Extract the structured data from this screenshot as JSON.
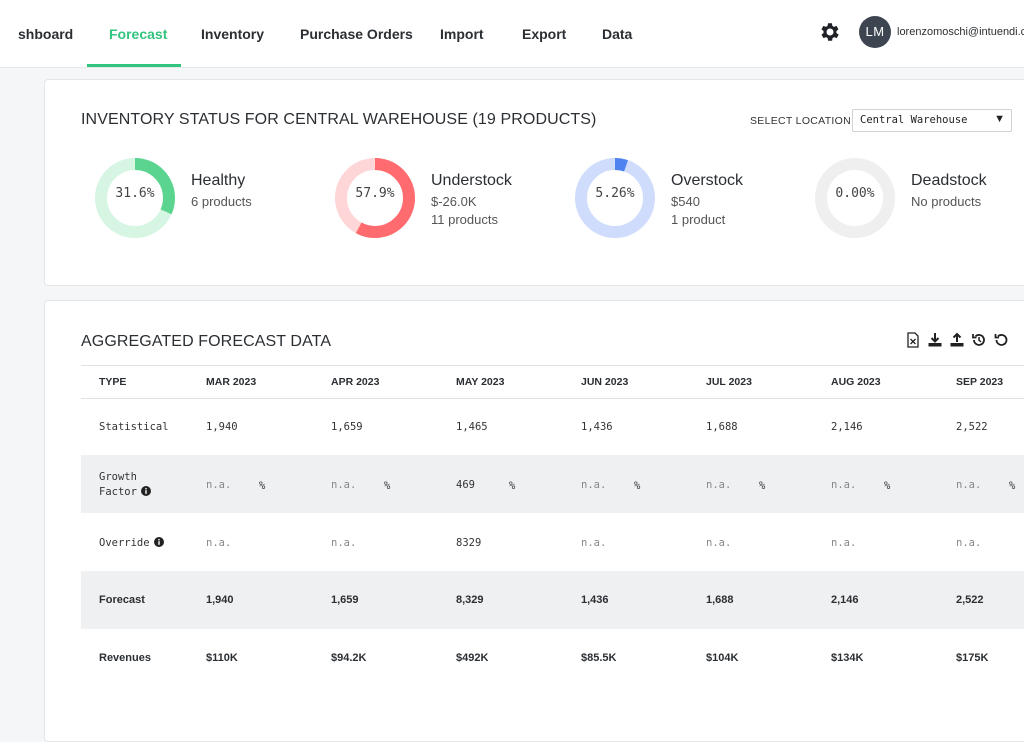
{
  "nav": {
    "items": [
      "shboard",
      "Forecast",
      "Inventory",
      "Purchase Orders",
      "Import",
      "Export",
      "Data"
    ],
    "active": "Forecast"
  },
  "user": {
    "initials": "LM",
    "email": "lorenzomoschi@intuendi.com"
  },
  "status_card": {
    "title": "INVENTORY STATUS FOR CENTRAL WAREHOUSE (19 PRODUCTS)",
    "location_label": "SELECT LOCATION",
    "location_value": "Central Warehouse",
    "items": [
      {
        "pct": "31.6%",
        "fraction": 0.316,
        "title": "Healthy",
        "line1": "6 products",
        "line2": "",
        "color": "#5bd48f",
        "track": "#d6f5e3"
      },
      {
        "pct": "57.9%",
        "fraction": 0.579,
        "title": "Understock",
        "line1": "$-26.0K",
        "line2": "11 products",
        "color": "#ff6b6f",
        "track": "#ffd6d7"
      },
      {
        "pct": "5.26%",
        "fraction": 0.0526,
        "title": "Overstock",
        "line1": "$540",
        "line2": "1 product",
        "color": "#4f83f0",
        "track": "#cfdcfc"
      },
      {
        "pct": "0.00%",
        "fraction": 0,
        "title": "Deadstock",
        "line1": "No products",
        "line2": "",
        "color": "#bbbbbb",
        "track": "#efefef"
      }
    ]
  },
  "forecast_card": {
    "title": "AGGREGATED FORECAST DATA",
    "tools": [
      "excel-icon",
      "download-icon",
      "upload-icon",
      "history-icon",
      "undo-icon"
    ],
    "columns": [
      "TYPE",
      "MAR 2023",
      "APR 2023",
      "MAY 2023",
      "JUN 2023",
      "JUL 2023",
      "AUG 2023",
      "SEP 2023"
    ],
    "rows": {
      "statistical": {
        "label": "Statistical",
        "values": [
          "1,940",
          "1,659",
          "1,465",
          "1,436",
          "1,688",
          "2,146",
          "2,522"
        ]
      },
      "growth": {
        "label1": "Growth",
        "label2": "Factor",
        "values": [
          "n.a.",
          "n.a.",
          "469",
          "n.a.",
          "n.a.",
          "n.a.",
          "n.a."
        ],
        "unit": "%"
      },
      "override": {
        "label": "Override",
        "values": [
          "n.a.",
          "n.a.",
          "8329",
          "n.a.",
          "n.a.",
          "n.a.",
          "n.a."
        ]
      },
      "forecast": {
        "label": "Forecast",
        "values": [
          "1,940",
          "1,659",
          "8,329",
          "1,436",
          "1,688",
          "2,146",
          "2,522"
        ]
      },
      "revenues": {
        "label": "Revenues",
        "values": [
          "$110K",
          "$94.2K",
          "$492K",
          "$85.5K",
          "$104K",
          "$134K",
          "$175K"
        ]
      }
    }
  }
}
